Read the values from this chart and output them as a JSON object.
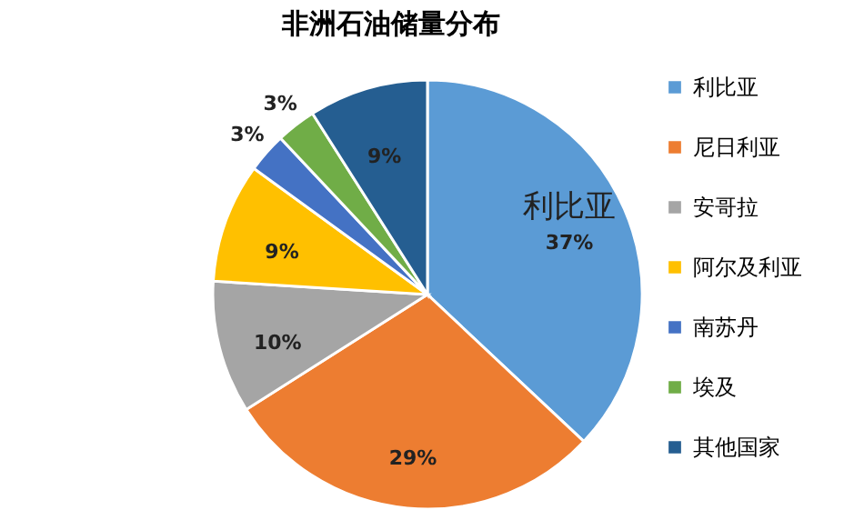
{
  "chart_data": {
    "type": "pie",
    "title": "非洲石油储量分布",
    "categories": [
      "利比亚",
      "尼日利亚",
      "安哥拉",
      "阿尔及利亚",
      "南苏丹",
      "埃及",
      "其他国家"
    ],
    "values": [
      37,
      29,
      10,
      9,
      3,
      3,
      9
    ],
    "value_labels": [
      "37%",
      "29%",
      "10%",
      "9%",
      "3%",
      "3%",
      "9%"
    ],
    "colors": [
      "#5b9bd5",
      "#ed7d31",
      "#a5a5a5",
      "#ffc000",
      "#4472c4",
      "#70ad47",
      "#255e91"
    ],
    "annotations": [
      "利比亚"
    ],
    "legend": "right"
  }
}
